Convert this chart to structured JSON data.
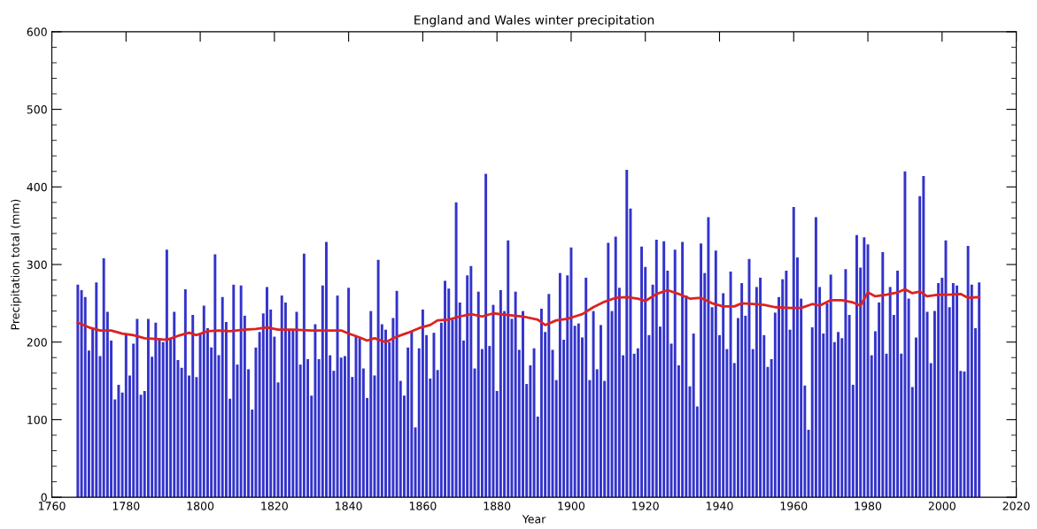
{
  "chart_data": {
    "type": "bar",
    "title": "England and Wales winter precipitation",
    "xlabel": "Year",
    "ylabel": "Precipitation total (mm)",
    "xlim": [
      1760,
      2020
    ],
    "xticks": [
      1760,
      1780,
      1800,
      1820,
      1840,
      1860,
      1880,
      1900,
      1920,
      1940,
      1960,
      1980,
      2000,
      2020
    ],
    "ylim": [
      0,
      600
    ],
    "yticks": [
      0,
      100,
      200,
      300,
      400,
      500,
      600
    ],
    "grid": false,
    "x": [
      1767,
      1768,
      1769,
      1770,
      1771,
      1772,
      1773,
      1774,
      1775,
      1776,
      1777,
      1778,
      1779,
      1780,
      1781,
      1782,
      1783,
      1784,
      1785,
      1786,
      1787,
      1788,
      1789,
      1790,
      1791,
      1792,
      1793,
      1794,
      1795,
      1796,
      1797,
      1798,
      1799,
      1800,
      1801,
      1802,
      1803,
      1804,
      1805,
      1806,
      1807,
      1808,
      1809,
      1810,
      1811,
      1812,
      1813,
      1814,
      1815,
      1816,
      1817,
      1818,
      1819,
      1820,
      1821,
      1822,
      1823,
      1824,
      1825,
      1826,
      1827,
      1828,
      1829,
      1830,
      1831,
      1832,
      1833,
      1834,
      1835,
      1836,
      1837,
      1838,
      1839,
      1840,
      1841,
      1842,
      1843,
      1844,
      1845,
      1846,
      1847,
      1848,
      1849,
      1850,
      1851,
      1852,
      1853,
      1854,
      1855,
      1856,
      1857,
      1858,
      1859,
      1860,
      1861,
      1862,
      1863,
      1864,
      1865,
      1866,
      1867,
      1868,
      1869,
      1870,
      1871,
      1872,
      1873,
      1874,
      1875,
      1876,
      1877,
      1878,
      1879,
      1880,
      1881,
      1882,
      1883,
      1884,
      1885,
      1886,
      1887,
      1888,
      1889,
      1890,
      1891,
      1892,
      1893,
      1894,
      1895,
      1896,
      1897,
      1898,
      1899,
      1900,
      1901,
      1902,
      1903,
      1904,
      1905,
      1906,
      1907,
      1908,
      1909,
      1910,
      1911,
      1912,
      1913,
      1914,
      1915,
      1916,
      1917,
      1918,
      1919,
      1920,
      1921,
      1922,
      1923,
      1924,
      1925,
      1926,
      1927,
      1928,
      1929,
      1930,
      1931,
      1932,
      1933,
      1934,
      1935,
      1936,
      1937,
      1938,
      1939,
      1940,
      1941,
      1942,
      1943,
      1944,
      1945,
      1946,
      1947,
      1948,
      1949,
      1950,
      1951,
      1952,
      1953,
      1954,
      1955,
      1956,
      1957,
      1958,
      1959,
      1960,
      1961,
      1962,
      1963,
      1964,
      1965,
      1966,
      1967,
      1968,
      1969,
      1970,
      1971,
      1972,
      1973,
      1974,
      1975,
      1976,
      1977,
      1978,
      1979,
      1980,
      1981,
      1982,
      1983,
      1984,
      1985,
      1986,
      1987,
      1988,
      1989,
      1990,
      1991,
      1992,
      1993,
      1994,
      1995,
      1996,
      1997,
      1998,
      1999,
      2000,
      2001,
      2002,
      2003,
      2004,
      2005,
      2006,
      2007,
      2008,
      2009,
      2010
    ],
    "series": [
      {
        "color": "#3333cc",
        "values": [
          274,
          267,
          258,
          189,
          217,
          277,
          182,
          308,
          239,
          202,
          126,
          145,
          135,
          209,
          157,
          198,
          230,
          132,
          137,
          230,
          181,
          225,
          205,
          200,
          319,
          205,
          239,
          177,
          167,
          268,
          157,
          235,
          155,
          210,
          247,
          218,
          193,
          313,
          183,
          258,
          226,
          127,
          274,
          171,
          273,
          234,
          165,
          113,
          193,
          213,
          237,
          271,
          242,
          207,
          148,
          260,
          251,
          215,
          215,
          239,
          171,
          314,
          178,
          131,
          223,
          178,
          273,
          329,
          183,
          163,
          260,
          180,
          182,
          270,
          155,
          208,
          205,
          166,
          128,
          240,
          157,
          306,
          223,
          216,
          200,
          231,
          266,
          150,
          131,
          193,
          214,
          90,
          192,
          242,
          209,
          153,
          212,
          164,
          225,
          279,
          269,
          229,
          380,
          251,
          202,
          286,
          298,
          166,
          265,
          191,
          417,
          195,
          248,
          137,
          267,
          240,
          331,
          230,
          265,
          190,
          240,
          146,
          170,
          192,
          104,
          243,
          213,
          262,
          190,
          151,
          289,
          203,
          286,
          322,
          221,
          224,
          206,
          283,
          151,
          240,
          165,
          222,
          150,
          328,
          240,
          336,
          270,
          183,
          422,
          372,
          185,
          192,
          323,
          297,
          209,
          274,
          332,
          220,
          330,
          292,
          198,
          319,
          170,
          329,
          260,
          143,
          211,
          117,
          327,
          289,
          361,
          245,
          318,
          209,
          263,
          191,
          291,
          173,
          231,
          276,
          234,
          307,
          191,
          271,
          283,
          209,
          168,
          178,
          238,
          258,
          281,
          292,
          216,
          374,
          309,
          256,
          144,
          87,
          219,
          361,
          271,
          211,
          250,
          287,
          200,
          213,
          205,
          294,
          235,
          145,
          338,
          296,
          335,
          326,
          183,
          214,
          251,
          316,
          185,
          271,
          235,
          292,
          185,
          420,
          256,
          142,
          206,
          388,
          414,
          239,
          173,
          240,
          276,
          283,
          331,
          245,
          276,
          273,
          163,
          162,
          324,
          274,
          218,
          277
        ]
      },
      {
        "type": "line",
        "color": "#dd2222",
        "x": [
          1767,
          1770,
          1773,
          1776,
          1779,
          1782,
          1785,
          1788,
          1791,
          1794,
          1797,
          1799,
          1802,
          1805,
          1808,
          1812,
          1815,
          1818,
          1821,
          1825,
          1830,
          1835,
          1838,
          1840,
          1843,
          1845,
          1847,
          1850,
          1853,
          1856,
          1859,
          1862,
          1864,
          1867,
          1870,
          1873,
          1876,
          1879,
          1883,
          1887,
          1891,
          1893,
          1896,
          1899,
          1901,
          1903,
          1906,
          1909,
          1912,
          1915,
          1918,
          1920,
          1923,
          1926,
          1929,
          1932,
          1935,
          1938,
          1941,
          1944,
          1946,
          1949,
          1952,
          1955,
          1959,
          1962,
          1965,
          1967,
          1970,
          1973,
          1976,
          1978,
          1980,
          1982,
          1985,
          1988,
          1990,
          1992,
          1994,
          1996,
          1999,
          2002,
          2005,
          2007,
          2010
        ],
        "values": [
          225,
          219,
          215,
          215,
          211,
          209,
          205,
          204,
          203,
          208,
          212,
          209,
          214,
          215,
          214,
          216,
          217,
          219,
          216,
          216,
          215,
          215,
          215,
          211,
          206,
          202,
          205,
          200,
          207,
          212,
          218,
          222,
          228,
          229,
          233,
          236,
          233,
          237,
          235,
          233,
          229,
          222,
          228,
          230,
          233,
          236,
          245,
          252,
          257,
          258,
          256,
          253,
          262,
          267,
          262,
          256,
          257,
          250,
          246,
          246,
          250,
          249,
          248,
          245,
          244,
          244,
          249,
          247,
          254,
          254,
          251,
          247,
          264,
          259,
          261,
          264,
          268,
          263,
          265,
          259,
          261,
          261,
          262,
          257,
          258
        ]
      }
    ]
  }
}
